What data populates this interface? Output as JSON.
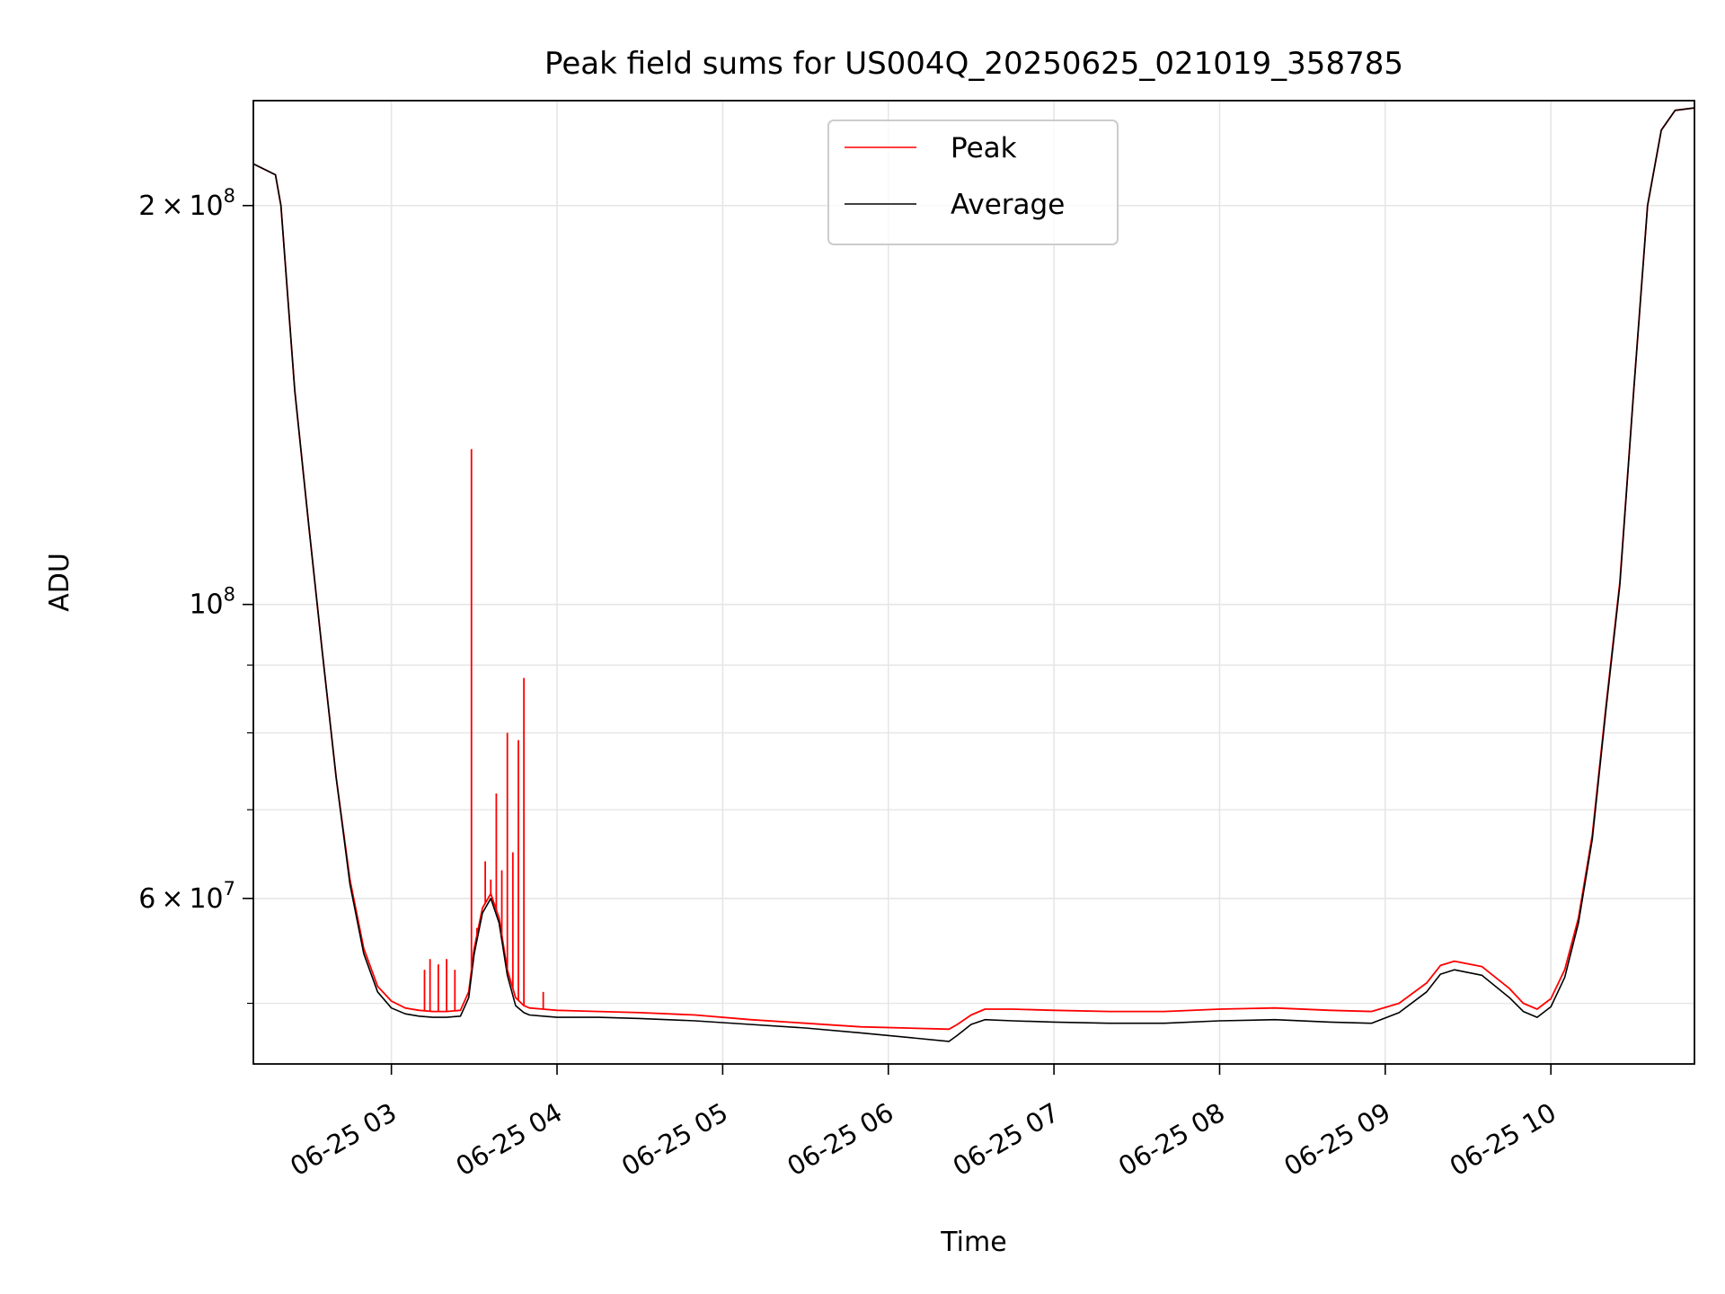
{
  "chart_data": {
    "type": "line",
    "title": "Peak field sums for US004Q_20250625_021019_358785",
    "xlabel": "Time",
    "ylabel": "ADU",
    "scale": {
      "x": "time",
      "y": "log"
    },
    "xlim": [
      "2025-06-25 02:10",
      "2025-06-25 10:52"
    ],
    "ylim": [
      45000000,
      240000000
    ],
    "grid": true,
    "legend": {
      "position": "upper center",
      "entries": [
        "Peak",
        "Average"
      ]
    },
    "x_ticks": [
      {
        "value": "2025-06-25 03:00",
        "label": "06-25 03"
      },
      {
        "value": "2025-06-25 04:00",
        "label": "06-25 04"
      },
      {
        "value": "2025-06-25 05:00",
        "label": "06-25 05"
      },
      {
        "value": "2025-06-25 06:00",
        "label": "06-25 06"
      },
      {
        "value": "2025-06-25 07:00",
        "label": "06-25 07"
      },
      {
        "value": "2025-06-25 08:00",
        "label": "06-25 08"
      },
      {
        "value": "2025-06-25 09:00",
        "label": "06-25 09"
      },
      {
        "value": "2025-06-25 10:00",
        "label": "06-25 10"
      }
    ],
    "y_major_ticks": [
      {
        "value": 60000000,
        "mant": "6",
        "exp": "7"
      },
      {
        "value": 100000000,
        "mant": "",
        "exp": "8"
      },
      {
        "value": 200000000,
        "mant": "2",
        "exp": "8"
      }
    ],
    "y_minor_ticks": [
      50000000,
      70000000,
      80000000,
      90000000
    ],
    "series": [
      {
        "name": "Peak",
        "color": "#ff0000",
        "x": [
          "2025-06-25 02:10",
          "2025-06-25 02:18",
          "2025-06-25 02:20",
          "2025-06-25 02:25",
          "2025-06-25 02:30",
          "2025-06-25 02:35",
          "2025-06-25 02:40",
          "2025-06-25 02:45",
          "2025-06-25 02:50",
          "2025-06-25 02:55",
          "2025-06-25 03:00",
          "2025-06-25 03:05",
          "2025-06-25 03:10",
          "2025-06-25 03:15",
          "2025-06-25 03:20",
          "2025-06-25 03:25",
          "2025-06-25 03:28",
          "2025-06-25 03:30",
          "2025-06-25 03:33",
          "2025-06-25 03:36",
          "2025-06-25 03:39",
          "2025-06-25 03:42",
          "2025-06-25 03:45",
          "2025-06-25 03:48",
          "2025-06-25 03:50",
          "2025-06-25 03:55",
          "2025-06-25 04:00",
          "2025-06-25 04:15",
          "2025-06-25 04:30",
          "2025-06-25 04:50",
          "2025-06-25 05:10",
          "2025-06-25 05:30",
          "2025-06-25 05:50",
          "2025-06-25 06:22",
          "2025-06-25 06:25",
          "2025-06-25 06:30",
          "2025-06-25 06:35",
          "2025-06-25 06:45",
          "2025-06-25 07:00",
          "2025-06-25 07:20",
          "2025-06-25 07:40",
          "2025-06-25 08:00",
          "2025-06-25 08:20",
          "2025-06-25 08:40",
          "2025-06-25 08:55",
          "2025-06-25 09:05",
          "2025-06-25 09:15",
          "2025-06-25 09:20",
          "2025-06-25 09:25",
          "2025-06-25 09:35",
          "2025-06-25 09:45",
          "2025-06-25 09:50",
          "2025-06-25 09:55",
          "2025-06-25 10:00",
          "2025-06-25 10:05",
          "2025-06-25 10:10",
          "2025-06-25 10:15",
          "2025-06-25 10:20",
          "2025-06-25 10:25",
          "2025-06-25 10:30",
          "2025-06-25 10:35",
          "2025-06-25 10:40",
          "2025-06-25 10:45",
          "2025-06-25 10:52"
        ],
        "y": [
          215000000,
          211000000,
          200000000,
          145000000,
          115000000,
          92000000,
          74000000,
          62000000,
          55000000,
          51500000,
          50200000,
          49600000,
          49400000,
          49300000,
          49300000,
          49400000,
          51000000,
          55000000,
          59000000,
          60500000,
          58000000,
          53000000,
          50500000,
          49800000,
          49600000,
          49500000,
          49400000,
          49300000,
          49200000,
          49000000,
          48600000,
          48300000,
          48000000,
          47800000,
          48200000,
          49000000,
          49500000,
          49500000,
          49400000,
          49300000,
          49300000,
          49500000,
          49600000,
          49400000,
          49300000,
          50000000,
          51800000,
          53400000,
          53800000,
          53300000,
          51300000,
          50000000,
          49500000,
          50400000,
          53000000,
          58000000,
          67000000,
          84000000,
          104000000,
          145000000,
          200000000,
          228000000,
          236000000,
          237000000
        ]
      },
      {
        "name": "Average",
        "color": "#000000",
        "x": [
          "2025-06-25 02:10",
          "2025-06-25 02:18",
          "2025-06-25 02:20",
          "2025-06-25 02:25",
          "2025-06-25 02:30",
          "2025-06-25 02:35",
          "2025-06-25 02:40",
          "2025-06-25 02:45",
          "2025-06-25 02:50",
          "2025-06-25 02:55",
          "2025-06-25 03:00",
          "2025-06-25 03:05",
          "2025-06-25 03:10",
          "2025-06-25 03:15",
          "2025-06-25 03:20",
          "2025-06-25 03:25",
          "2025-06-25 03:28",
          "2025-06-25 03:30",
          "2025-06-25 03:33",
          "2025-06-25 03:36",
          "2025-06-25 03:39",
          "2025-06-25 03:42",
          "2025-06-25 03:45",
          "2025-06-25 03:48",
          "2025-06-25 03:50",
          "2025-06-25 03:55",
          "2025-06-25 04:00",
          "2025-06-25 04:15",
          "2025-06-25 04:30",
          "2025-06-25 04:50",
          "2025-06-25 05:10",
          "2025-06-25 05:30",
          "2025-06-25 05:50",
          "2025-06-25 06:22",
          "2025-06-25 06:25",
          "2025-06-25 06:30",
          "2025-06-25 06:35",
          "2025-06-25 06:45",
          "2025-06-25 07:00",
          "2025-06-25 07:20",
          "2025-06-25 07:40",
          "2025-06-25 08:00",
          "2025-06-25 08:20",
          "2025-06-25 08:40",
          "2025-06-25 08:55",
          "2025-06-25 09:05",
          "2025-06-25 09:15",
          "2025-06-25 09:20",
          "2025-06-25 09:25",
          "2025-06-25 09:35",
          "2025-06-25 09:45",
          "2025-06-25 09:50",
          "2025-06-25 09:55",
          "2025-06-25 10:00",
          "2025-06-25 10:05",
          "2025-06-25 10:10",
          "2025-06-25 10:15",
          "2025-06-25 10:20",
          "2025-06-25 10:25",
          "2025-06-25 10:30",
          "2025-06-25 10:35",
          "2025-06-25 10:40",
          "2025-06-25 10:45",
          "2025-06-25 10:52"
        ],
        "y": [
          215000000,
          211000000,
          200000000,
          145000000,
          115000000,
          92000000,
          74000000,
          61500000,
          54500000,
          51000000,
          49600000,
          49100000,
          48900000,
          48800000,
          48800000,
          48900000,
          50500000,
          54500000,
          58500000,
          60000000,
          57500000,
          52500000,
          49800000,
          49200000,
          49000000,
          48900000,
          48800000,
          48800000,
          48700000,
          48500000,
          48200000,
          47900000,
          47500000,
          46800000,
          47300000,
          48200000,
          48600000,
          48500000,
          48400000,
          48300000,
          48300000,
          48500000,
          48600000,
          48400000,
          48300000,
          49200000,
          51000000,
          52600000,
          53000000,
          52500000,
          50500000,
          49300000,
          48800000,
          49700000,
          52300000,
          57500000,
          66500000,
          83500000,
          103500000,
          145000000,
          200000000,
          228000000,
          236000000,
          237000000
        ]
      }
    ],
    "spikes": {
      "series": "Peak",
      "x": [
        "2025-06-25 03:12",
        "2025-06-25 03:14",
        "2025-06-25 03:17",
        "2025-06-25 03:20",
        "2025-06-25 03:23",
        "2025-06-25 03:29",
        "2025-06-25 03:31",
        "2025-06-25 03:34",
        "2025-06-25 03:36",
        "2025-06-25 03:38",
        "2025-06-25 03:40",
        "2025-06-25 03:42",
        "2025-06-25 03:44",
        "2025-06-25 03:46",
        "2025-06-25 03:48",
        "2025-06-25 03:55"
      ],
      "y": [
        53000000,
        54000000,
        53500000,
        54000000,
        53000000,
        131000000,
        57000000,
        64000000,
        62000000,
        72000000,
        63000000,
        80000000,
        65000000,
        79000000,
        88000000,
        51000000
      ]
    }
  }
}
